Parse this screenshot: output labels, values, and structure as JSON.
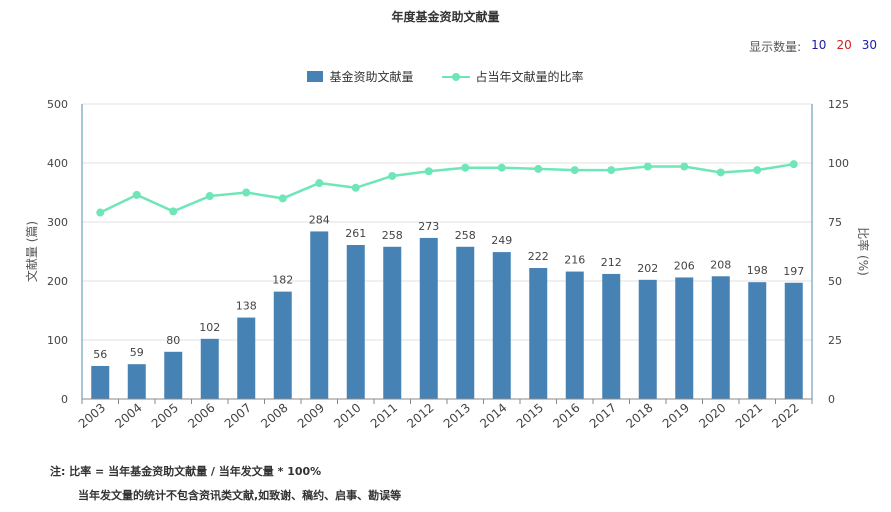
{
  "title": "年度基金资助文献量",
  "display_count": {
    "label": "显示数量:",
    "options": [
      {
        "value": "10",
        "color": "#1a1aa6"
      },
      {
        "value": "20",
        "color": "#d62020"
      },
      {
        "value": "30",
        "color": "#1a1aa6"
      }
    ]
  },
  "legend": {
    "bar_label": "基金资助文献量",
    "line_label": "占当年文献量的比率"
  },
  "colors": {
    "bar": "#4682b4",
    "line": "#6ee6b8",
    "axis": "#4f8fb0",
    "grid": "#e0e0e0"
  },
  "notes": {
    "line1": "注:  比率 = 当年基金资助文献量 / 当年发文量 * 100%",
    "line2": "当年发文量的统计不包含资讯类文献,如致谢、稿约、启事、勘误等"
  },
  "chart_data": {
    "type": "bar",
    "title": "年度基金资助文献量",
    "categories": [
      "2003",
      "2004",
      "2005",
      "2006",
      "2007",
      "2008",
      "2009",
      "2010",
      "2011",
      "2012",
      "2013",
      "2014",
      "2015",
      "2016",
      "2017",
      "2018",
      "2019",
      "2020",
      "2021",
      "2022"
    ],
    "series": [
      {
        "name": "基金资助文献量",
        "type": "bar",
        "axis": "left",
        "values": [
          56,
          59,
          80,
          102,
          138,
          182,
          284,
          261,
          258,
          273,
          258,
          249,
          222,
          216,
          212,
          202,
          206,
          208,
          198,
          197
        ]
      },
      {
        "name": "占当年文献量的比率",
        "type": "line",
        "axis": "right",
        "values": [
          79,
          86.5,
          79.5,
          86,
          87.5,
          85,
          91.5,
          89.5,
          94.5,
          96.5,
          98,
          98,
          97.5,
          97,
          97,
          98.5,
          98.5,
          96,
          97,
          99.5
        ]
      }
    ],
    "ylabel": "文献量 (篇)",
    "y2label": "比率 (%)",
    "ylim": [
      0,
      500
    ],
    "y2lim": [
      0,
      125
    ],
    "yticks": [
      "0",
      "100",
      "200",
      "300",
      "400",
      "500"
    ],
    "y2ticks": [
      "0",
      "25",
      "50",
      "75",
      "100",
      "125"
    ],
    "grid": true,
    "legend_position": "top-center"
  }
}
